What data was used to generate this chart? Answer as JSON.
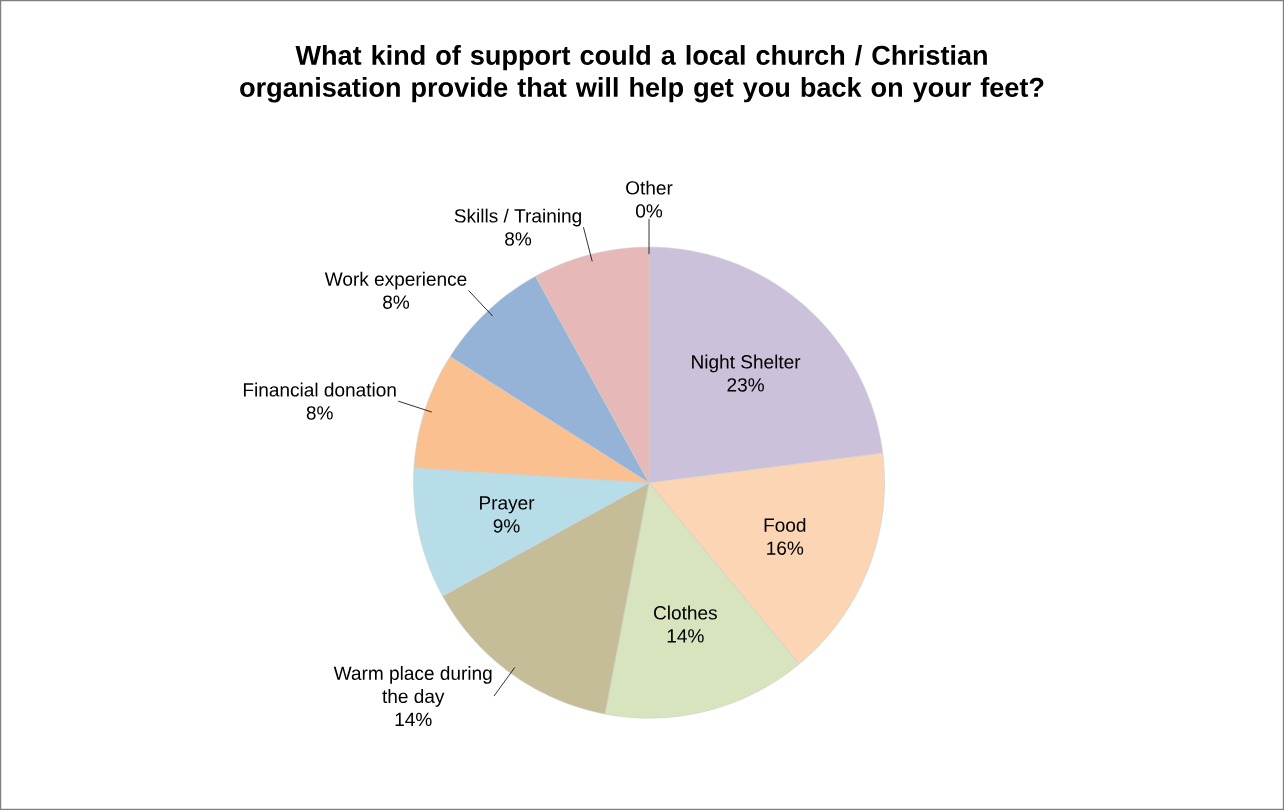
{
  "chart_data": {
    "type": "pie",
    "title": "What kind of support could a local church / Christian organisation provide that will help get you back on your feet?",
    "categories": [
      "Night Shelter",
      "Food",
      "Clothes",
      "Warm place during the day",
      "Prayer",
      "Financial donation",
      "Work experience",
      "Skills / Training",
      "Other"
    ],
    "values": [
      23,
      16,
      14,
      14,
      9,
      8,
      8,
      8,
      0
    ],
    "colors": [
      "#ccc1da",
      "#fcd5b5",
      "#d7e4bd",
      "#c4bd97",
      "#b7dee8",
      "#fac090",
      "#95b3d7",
      "#e6b9b8",
      "#d4d400"
    ],
    "value_labels": [
      "23%",
      "16%",
      "14%",
      "14%",
      "9%",
      "8%",
      "8%",
      "8%",
      "0%"
    ]
  }
}
